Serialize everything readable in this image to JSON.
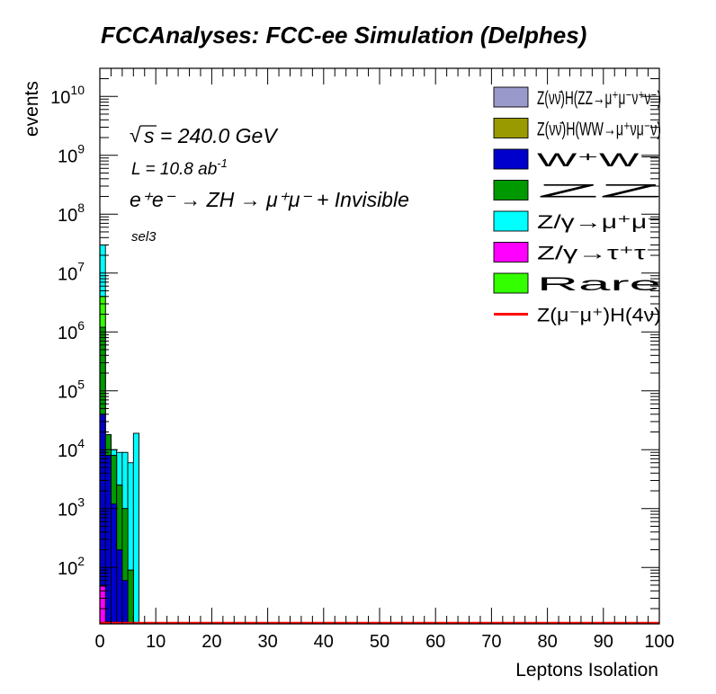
{
  "chart_data": {
    "type": "bar",
    "title": "FCCAnalyses: FCC-ee Simulation (Delphes)",
    "xlabel": "Leptons Isolation",
    "ylabel": "events",
    "xlim": [
      0,
      100
    ],
    "ylim": [
      11,
      30000000000
    ],
    "yscale": "log",
    "bin_width": 1,
    "x_ticks": [
      "0",
      "10",
      "20",
      "30",
      "40",
      "50",
      "60",
      "70",
      "80",
      "90",
      "100"
    ],
    "y_ticks": [
      {
        "value": 100,
        "base": "10",
        "exp": "2"
      },
      {
        "value": 1000,
        "base": "10",
        "exp": "3"
      },
      {
        "value": 10000,
        "base": "10",
        "exp": "4"
      },
      {
        "value": 100000,
        "base": "10",
        "exp": "5"
      },
      {
        "value": 1000000,
        "base": "10",
        "exp": "6"
      },
      {
        "value": 10000000,
        "base": "10",
        "exp": "7"
      },
      {
        "value": 100000000,
        "base": "10",
        "exp": "8"
      },
      {
        "value": 1000000000,
        "base": "10",
        "exp": "9"
      },
      {
        "value": 10000000000,
        "base": "10",
        "exp": "10"
      }
    ],
    "annotations": {
      "sqrt_prefix": "√",
      "energy": "s = 240.0 GeV",
      "lumi_base": "L = 10.8 ab",
      "lumi_sup": "-1",
      "process": "e⁺e⁻ → ZH → μ⁺μ⁻ + Invisible",
      "selection": "sel3"
    },
    "stack_totals": [
      {
        "bin": 0,
        "magenta": 48,
        "blue": 40000,
        "green": 1200000,
        "lightgreen": 4000000,
        "cyan": 30000000
      },
      {
        "bin": 1,
        "magenta": 12,
        "blue": 8000,
        "green": 18000,
        "lightgreen": 18000,
        "cyan": 18000
      },
      {
        "bin": 2,
        "magenta": 10,
        "blue": 1200,
        "green": 8000,
        "lightgreen": 8000,
        "cyan": 10000
      },
      {
        "bin": 3,
        "magenta": 0,
        "blue": 200,
        "green": 2500,
        "lightgreen": 2500,
        "cyan": 9000
      },
      {
        "bin": 4,
        "magenta": 0,
        "blue": 60,
        "green": 1000,
        "lightgreen": 1000,
        "cyan": 9000
      },
      {
        "bin": 5,
        "magenta": 0,
        "blue": 0,
        "green": 90,
        "lightgreen": 90,
        "cyan": 6000
      },
      {
        "bin": 6,
        "magenta": 0,
        "blue": 0,
        "green": 0,
        "lightgreen": 0,
        "cyan": 19000
      }
    ],
    "series": [
      {
        "key": "zh_zz",
        "name": "Z(νν̄)H(ZZ→μ⁺μ⁻ν⁺ν⁻)",
        "color": "#9999cc",
        "type": "fill"
      },
      {
        "key": "zh_ww",
        "name": "Z(νν̄)H(WW→μ⁺νμ⁻ν)",
        "color": "#999900",
        "type": "fill"
      },
      {
        "key": "ww",
        "name": "W⁺W⁻",
        "color": "#0000cc",
        "type": "fill"
      },
      {
        "key": "zz",
        "name": "ZZ",
        "color": "#009900",
        "type": "fill"
      },
      {
        "key": "zmumu",
        "name": "Z/γ→μ⁺μ⁻",
        "color": "#00ffff",
        "type": "fill"
      },
      {
        "key": "ztautau",
        "name": "Z/γ→τ⁺τ⁻",
        "color": "#ff00ff",
        "type": "fill"
      },
      {
        "key": "rare",
        "name": "Rare",
        "color": "#33ff00",
        "type": "fill"
      },
      {
        "key": "signal",
        "name": "Z(μ⁻μ⁺)H(4ν)",
        "color": "#ff0000",
        "type": "line"
      }
    ]
  }
}
